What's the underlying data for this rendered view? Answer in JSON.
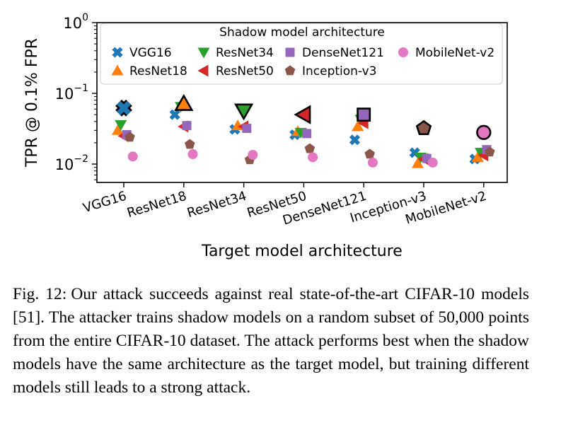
{
  "chart_data": {
    "type": "scatter",
    "xlabel": "Target model architecture",
    "ylabel": "TPR @ 0.1% FPR",
    "yscale": "log",
    "ylim": [
      0.0055,
      1
    ],
    "yticks": [
      {
        "value": 1,
        "base": "10",
        "exp": "0"
      },
      {
        "value": 0.1,
        "base": "10",
        "exp": "−1"
      },
      {
        "value": 0.01,
        "base": "10",
        "exp": "−2"
      }
    ],
    "categories": [
      "VGG16",
      "ResNet18",
      "ResNet34",
      "ResNet50",
      "DenseNet121",
      "Inception-v3",
      "MobileNet-v2"
    ],
    "legend": {
      "title": "Shadow model architecture",
      "placement": "top"
    },
    "series": [
      {
        "name": "VGG16",
        "marker": "x",
        "color": "#1f77b4",
        "offset": -0.15,
        "values": [
          0.062,
          0.05,
          0.031,
          0.026,
          0.022,
          0.0145,
          0.0118
        ]
      },
      {
        "name": "ResNet18",
        "marker": "triangle-up",
        "color": "#ff7f0e",
        "offset": -0.1,
        "values": [
          0.03,
          0.071,
          0.035,
          0.029,
          0.034,
          0.0102,
          0.0125
        ]
      },
      {
        "name": "ResNet34",
        "marker": "triangle-down",
        "color": "#2ca02c",
        "offset": -0.05,
        "values": [
          0.036,
          0.065,
          0.057,
          0.028,
          0.043,
          0.0125,
          0.0146
        ]
      },
      {
        "name": "ResNet50",
        "marker": "triangle-left",
        "color": "#d62728",
        "offset": 0.0,
        "values": [
          0.025,
          0.034,
          0.034,
          0.05,
          0.038,
          0.0118,
          0.0133
        ]
      },
      {
        "name": "DenseNet121",
        "marker": "square",
        "color": "#9467bd",
        "offset": 0.05,
        "values": [
          0.026,
          0.035,
          0.032,
          0.027,
          0.05,
          0.012,
          0.016
        ]
      },
      {
        "name": "Inception-v3",
        "marker": "pentagon",
        "color": "#8c564b",
        "offset": 0.1,
        "values": [
          0.024,
          0.019,
          0.0115,
          0.0165,
          0.0138,
          0.032,
          0.0148
        ]
      },
      {
        "name": "MobileNet-v2",
        "marker": "circle",
        "color": "#e377c2",
        "offset": 0.15,
        "values": [
          0.0128,
          0.0138,
          0.0135,
          0.0125,
          0.0105,
          0.0105,
          0.028
        ]
      }
    ],
    "highlight": "The marker whose shadow architecture matches the target architecture is drawn larger with a black outline",
    "grid": false
  },
  "caption": {
    "lead": "Fig. 12:",
    "text": "Our attack succeeds against real state-of-the-art CIFAR-10 models [51]. The attacker trains shadow models on a random subset of 50,000 points from the entire CIFAR-10 dataset. The attack performs best when the shadow models have the same architecture as the target model, but training different models still leads to a strong attack."
  }
}
